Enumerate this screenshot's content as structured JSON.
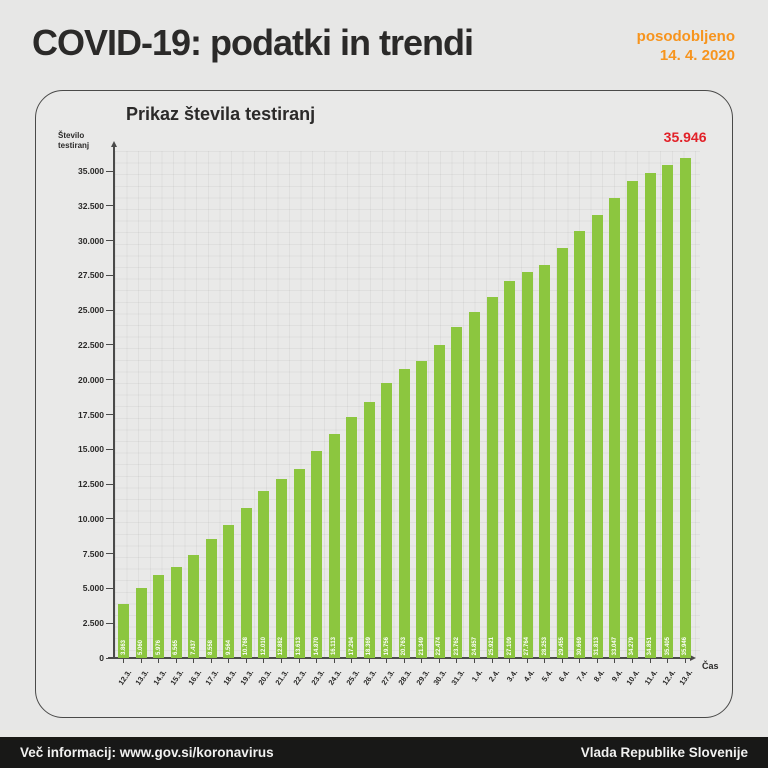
{
  "header": {
    "title": "COVID-19: podatki in trendi",
    "updated_label": "posodobljeno",
    "updated_date": "14. 4. 2020"
  },
  "chart_data": {
    "type": "bar",
    "title": "Prikaz števila testiranj",
    "ylabel_line1": "Število",
    "ylabel_line2": "testiranj",
    "xlabel": "Čas",
    "categories": [
      "12.3.",
      "13.3.",
      "14.3.",
      "15.3.",
      "16.3.",
      "17.3.",
      "18.3.",
      "19.3.",
      "20.3.",
      "21.3.",
      "22.3.",
      "23.3.",
      "24.3.",
      "25.3.",
      "26.3.",
      "27.3.",
      "28.3.",
      "29.3.",
      "30.3.",
      "31.3.",
      "1.4.",
      "2.4.",
      "3.4.",
      "4.4.",
      "5.4.",
      "6.4.",
      "7.4.",
      "8.4.",
      "9.4.",
      "10.4.",
      "11.4.",
      "12.4.",
      "13.4."
    ],
    "values": [
      3863,
      5060,
      5976,
      6565,
      7437,
      8558,
      9564,
      10768,
      12010,
      12882,
      13613,
      14870,
      16113,
      17294,
      18369,
      19756,
      20763,
      21349,
      22474,
      23762,
      24857,
      25921,
      27109,
      27764,
      28253,
      29455,
      30669,
      31813,
      33047,
      34279,
      34851,
      35405,
      35946
    ],
    "bar_labels": [
      "3.863",
      "5.060",
      "5.976",
      "6.565",
      "7.437",
      "8.558",
      "9.564",
      "10.768",
      "12.010",
      "12.882",
      "13.613",
      "14.870",
      "16.113",
      "17.294",
      "18.369",
      "19.756",
      "20.763",
      "21.349",
      "22.474",
      "23.762",
      "24.857",
      "25.921",
      "27.109",
      "27.764",
      "28.253",
      "29.455",
      "30.669",
      "31.813",
      "33.047",
      "34.279",
      "34.851",
      "35.405",
      "35.946"
    ],
    "highlight_label": "35.946",
    "ylim": [
      0,
      36500
    ],
    "yticks": [
      0,
      2500,
      5000,
      7500,
      10000,
      12500,
      15000,
      17500,
      20000,
      22500,
      25000,
      27500,
      30000,
      32500,
      35000
    ],
    "ytick_labels": [
      "0",
      "2.500",
      "5.000",
      "7.500",
      "10.000",
      "12.500",
      "15.000",
      "17.500",
      "20.000",
      "22.500",
      "25.000",
      "27.500",
      "30.000",
      "32.500",
      "35.000"
    ],
    "grid": true,
    "legend": "none",
    "bar_color": "#8cc63f",
    "highlight_color": "#e22128"
  },
  "footer": {
    "left": "Več informacij: www.gov.si/koronavirus",
    "right": "Vlada Republike Slovenije"
  },
  "colors": {
    "background": "#e7e7e6",
    "card_background": "#e9e9e8",
    "card_border": "#4a4a49",
    "accent_orange": "#f7941d",
    "bar_green": "#8cc63f",
    "highlight_red": "#e22128",
    "footer_background": "#181817",
    "footer_text": "#f1f1f0"
  }
}
